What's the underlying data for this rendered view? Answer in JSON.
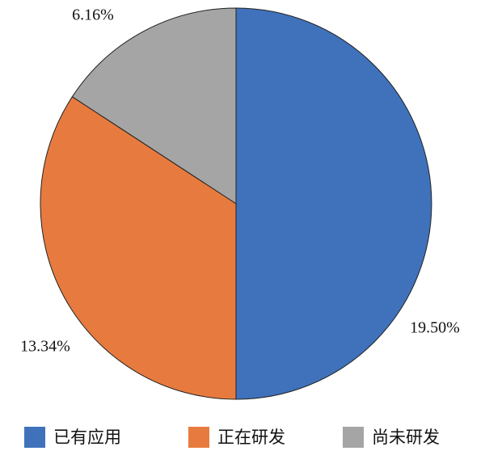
{
  "chart_data": {
    "type": "pie",
    "categories": [
      "已有应用",
      "正在研发",
      "尚未研发"
    ],
    "values": [
      19.5,
      13.34,
      6.16
    ],
    "value_labels": [
      "19.50%",
      "13.34%",
      "6.16%"
    ],
    "colors": [
      "#3f72bb",
      "#e77b3f",
      "#a5a5a5"
    ],
    "legend": "bottom"
  }
}
